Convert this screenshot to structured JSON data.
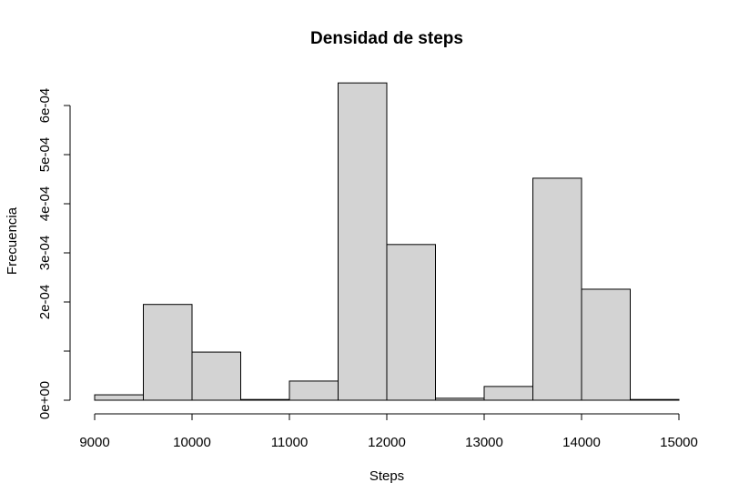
{
  "chart_data": {
    "type": "bar",
    "title": "Densidad de steps",
    "xlabel": "Steps",
    "ylabel": "Frecuencia",
    "xlim": [
      9000,
      15000
    ],
    "ylim": [
      0,
      0.00065
    ],
    "bin_width": 500,
    "bins": [
      {
        "start": 9000,
        "end": 9500,
        "value": 1.1e-05
      },
      {
        "start": 9500,
        "end": 10000,
        "value": 0.000195
      },
      {
        "start": 10000,
        "end": 10500,
        "value": 9.8e-05
      },
      {
        "start": 10500,
        "end": 11000,
        "value": 1.5e-06
      },
      {
        "start": 11000,
        "end": 11500,
        "value": 3.9e-05
      },
      {
        "start": 11500,
        "end": 12000,
        "value": 0.000646
      },
      {
        "start": 12000,
        "end": 12500,
        "value": 0.000317
      },
      {
        "start": 12500,
        "end": 13000,
        "value": 4e-06
      },
      {
        "start": 13000,
        "end": 13500,
        "value": 2.8e-05
      },
      {
        "start": 13500,
        "end": 14000,
        "value": 0.000452
      },
      {
        "start": 14000,
        "end": 14500,
        "value": 0.000226
      },
      {
        "start": 14500,
        "end": 15000,
        "value": 1.5e-06
      }
    ],
    "x_ticks": [
      {
        "value": 9000,
        "label": "9000"
      },
      {
        "value": 10000,
        "label": "10000"
      },
      {
        "value": 11000,
        "label": "11000"
      },
      {
        "value": 12000,
        "label": "12000"
      },
      {
        "value": 13000,
        "label": "13000"
      },
      {
        "value": 14000,
        "label": "14000"
      },
      {
        "value": 15000,
        "label": "15000"
      }
    ],
    "y_ticks": [
      {
        "value": 0,
        "label": "0e+00"
      },
      {
        "value": 0.0001,
        "label": ""
      },
      {
        "value": 0.0002,
        "label": "2e-04"
      },
      {
        "value": 0.0003,
        "label": "3e-04"
      },
      {
        "value": 0.0004,
        "label": "4e-04"
      },
      {
        "value": 0.0005,
        "label": "5e-04"
      },
      {
        "value": 0.0006,
        "label": "6e-04"
      }
    ]
  }
}
